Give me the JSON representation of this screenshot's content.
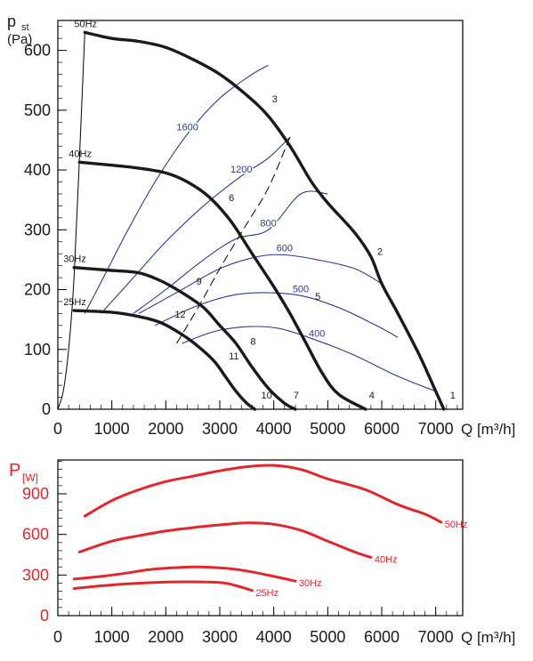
{
  "chart_data": [
    {
      "type": "line",
      "ylabel_main": "p",
      "ylabel_sub": "st",
      "ylabel_unit": "(Pa)",
      "xlabel": "Q [m³/h]",
      "xlim": [
        0,
        7500
      ],
      "ylim": [
        0,
        650
      ],
      "x_ticks": [
        "0",
        "1000",
        "2000",
        "3000",
        "4000",
        "5000",
        "6000",
        "7000"
      ],
      "y_ticks": [
        "0",
        "100",
        "200",
        "300",
        "400",
        "500",
        "600"
      ],
      "frequency_curves": [
        {
          "name": "50Hz",
          "points": [
            [
              500,
              630
            ],
            [
              1000,
              620
            ],
            [
              1500,
              615
            ],
            [
              2000,
              605
            ],
            [
              2500,
              585
            ],
            [
              3000,
              560
            ],
            [
              3500,
              525
            ],
            [
              3900,
              490
            ],
            [
              4300,
              440
            ],
            [
              4700,
              380
            ],
            [
              5000,
              345
            ],
            [
              5500,
              295
            ],
            [
              5800,
              255
            ],
            [
              6000,
              210
            ],
            [
              6300,
              160
            ],
            [
              6700,
              90
            ],
            [
              7000,
              30
            ],
            [
              7150,
              0
            ]
          ]
        },
        {
          "name": "40Hz",
          "points": [
            [
              400,
              413
            ],
            [
              1000,
              408
            ],
            [
              1500,
              403
            ],
            [
              2000,
              395
            ],
            [
              2400,
              380
            ],
            [
              2800,
              355
            ],
            [
              3200,
              315
            ],
            [
              3600,
              260
            ],
            [
              4000,
              205
            ],
            [
              4300,
              160
            ],
            [
              4600,
              110
            ],
            [
              4900,
              60
            ],
            [
              5200,
              25
            ],
            [
              5700,
              0
            ]
          ]
        },
        {
          "name": "30Hz",
          "points": [
            [
              300,
              237
            ],
            [
              1000,
              232
            ],
            [
              1500,
              228
            ],
            [
              1900,
              215
            ],
            [
              2300,
              195
            ],
            [
              2700,
              170
            ],
            [
              3000,
              140
            ],
            [
              3300,
              110
            ],
            [
              3600,
              70
            ],
            [
              3900,
              35
            ],
            [
              4200,
              10
            ],
            [
              4400,
              0
            ]
          ]
        },
        {
          "name": "25Hz",
          "points": [
            [
              300,
              165
            ],
            [
              1000,
              162
            ],
            [
              1500,
              155
            ],
            [
              1900,
              145
            ],
            [
              2300,
              125
            ],
            [
              2600,
              105
            ],
            [
              2900,
              80
            ],
            [
              3100,
              55
            ],
            [
              3300,
              30
            ],
            [
              3500,
              10
            ],
            [
              3650,
              0
            ]
          ]
        }
      ],
      "iso_rpm_curves": [
        {
          "name": "1600",
          "points": [
            [
              500,
              160
            ],
            [
              900,
              230
            ],
            [
              1300,
              300
            ],
            [
              1800,
              380
            ],
            [
              2400,
              460
            ],
            [
              3000,
              520
            ],
            [
              3600,
              560
            ],
            [
              3900,
              575
            ]
          ]
        },
        {
          "name": "1200",
          "points": [
            [
              800,
              160
            ],
            [
              1400,
              220
            ],
            [
              2000,
              280
            ],
            [
              2700,
              340
            ],
            [
              3400,
              390
            ],
            [
              3900,
              420
            ],
            [
              4300,
              455
            ]
          ]
        },
        {
          "name": "800",
          "points": [
            [
              1400,
              160
            ],
            [
              2000,
              200
            ],
            [
              2700,
              250
            ],
            [
              3300,
              285
            ],
            [
              3900,
              300
            ],
            [
              4500,
              360
            ],
            [
              5000,
              360
            ]
          ]
        },
        {
          "name": "600",
          "points": [
            [
              1500,
              160
            ],
            [
              2300,
              200
            ],
            [
              3000,
              235
            ],
            [
              3700,
              255
            ],
            [
              4200,
              258
            ],
            [
              4800,
              250
            ],
            [
              5500,
              235
            ],
            [
              6000,
              210
            ]
          ]
        },
        {
          "name": "500",
          "points": [
            [
              1800,
              140
            ],
            [
              2500,
              170
            ],
            [
              3200,
              190
            ],
            [
              3800,
              195
            ],
            [
              4500,
              190
            ],
            [
              5200,
              170
            ],
            [
              5900,
              140
            ],
            [
              6300,
              120
            ]
          ]
        },
        {
          "name": "400",
          "points": [
            [
              2300,
              110
            ],
            [
              2900,
              130
            ],
            [
              3500,
              138
            ],
            [
              4100,
              135
            ],
            [
              4800,
              115
            ],
            [
              5500,
              90
            ],
            [
              6300,
              55
            ],
            [
              7000,
              30
            ]
          ]
        }
      ],
      "system_line": [
        [
          2200,
          110
        ],
        [
          2600,
          170
        ],
        [
          3000,
          235
        ],
        [
          3500,
          310
        ],
        [
          3900,
          370
        ],
        [
          4300,
          455
        ]
      ],
      "startup_line": [
        [
          0,
          0
        ],
        [
          100,
          30
        ],
        [
          200,
          100
        ],
        [
          300,
          220
        ],
        [
          400,
          420
        ],
        [
          500,
          630
        ]
      ],
      "operating_points": [
        {
          "label": "1",
          "x": 7200,
          "y": 15
        },
        {
          "label": "2",
          "x": 5850,
          "y": 255
        },
        {
          "label": "3",
          "x": 3900,
          "y": 510
        },
        {
          "label": "4",
          "x": 5700,
          "y": 15
        },
        {
          "label": "5",
          "x": 4700,
          "y": 180
        },
        {
          "label": "6",
          "x": 3100,
          "y": 345
        },
        {
          "label": "7",
          "x": 4300,
          "y": 15
        },
        {
          "label": "8",
          "x": 3500,
          "y": 105
        },
        {
          "label": "9",
          "x": 2500,
          "y": 205
        },
        {
          "label": "10",
          "x": 3700,
          "y": 15
        },
        {
          "label": "11",
          "x": 3100,
          "y": 80
        },
        {
          "label": "12",
          "x": 2100,
          "y": 150
        }
      ]
    },
    {
      "type": "line",
      "ylabel_main": "P",
      "ylabel_sub": "[W]",
      "xlabel": "Q [m³/h]",
      "xlim": [
        0,
        7500
      ],
      "ylim": [
        0,
        1150
      ],
      "x_ticks": [
        "0",
        "1000",
        "2000",
        "3000",
        "4000",
        "5000",
        "6000",
        "7000"
      ],
      "y_ticks": [
        "0",
        "300",
        "600",
        "900"
      ],
      "series": [
        {
          "name": "50Hz",
          "points": [
            [
              500,
              735
            ],
            [
              1000,
              850
            ],
            [
              1500,
              930
            ],
            [
              2000,
              990
            ],
            [
              2500,
              1030
            ],
            [
              3000,
              1070
            ],
            [
              3500,
              1100
            ],
            [
              4000,
              1110
            ],
            [
              4500,
              1080
            ],
            [
              5000,
              1010
            ],
            [
              5700,
              930
            ],
            [
              6300,
              820
            ],
            [
              6800,
              750
            ],
            [
              7100,
              690
            ]
          ]
        },
        {
          "name": "40Hz",
          "points": [
            [
              400,
              470
            ],
            [
              1000,
              550
            ],
            [
              1500,
              590
            ],
            [
              2000,
              625
            ],
            [
              2500,
              650
            ],
            [
              3000,
              670
            ],
            [
              3500,
              685
            ],
            [
              4000,
              675
            ],
            [
              4500,
              630
            ],
            [
              5000,
              550
            ],
            [
              5500,
              470
            ],
            [
              5800,
              430
            ]
          ]
        },
        {
          "name": "30Hz",
          "points": [
            [
              300,
              270
            ],
            [
              800,
              290
            ],
            [
              1200,
              310
            ],
            [
              1700,
              340
            ],
            [
              2200,
              355
            ],
            [
              2600,
              360
            ],
            [
              3100,
              350
            ],
            [
              3500,
              330
            ],
            [
              4000,
              290
            ],
            [
              4400,
              255
            ]
          ]
        },
        {
          "name": "25Hz",
          "points": [
            [
              300,
              200
            ],
            [
              800,
              220
            ],
            [
              1300,
              235
            ],
            [
              1800,
              245
            ],
            [
              2400,
              250
            ],
            [
              2800,
              248
            ],
            [
              3100,
              240
            ],
            [
              3400,
              210
            ],
            [
              3600,
              185
            ]
          ]
        }
      ]
    }
  ]
}
